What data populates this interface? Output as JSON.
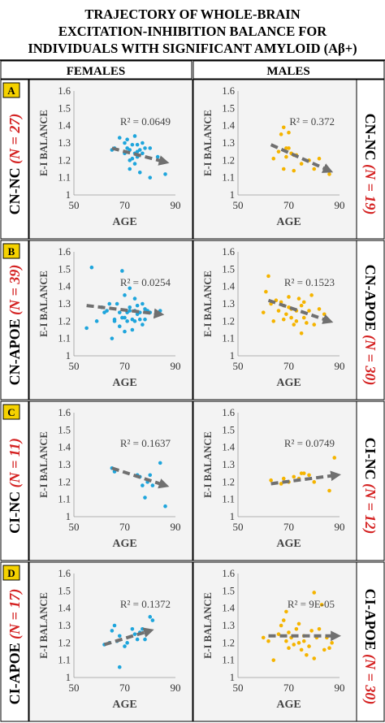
{
  "title_lines": [
    "TRAJECTORY OF WHOLE-BRAIN",
    "EXCITATION-INHIBITION BALANCE FOR",
    "INDIVIDUALS WITH SIGNIFICANT AMYLOID (Aβ+)"
  ],
  "columns": [
    "FEMALES",
    "MALES"
  ],
  "axis": {
    "xlabel": "AGE",
    "ylabel": "E-I BALANCE"
  },
  "colors": {
    "females": "#1ea5dc",
    "males": "#f5b400",
    "trend": "#707070",
    "panel_bg": "#f3f3f3",
    "count_red": "#d42020"
  },
  "rows": [
    {
      "letter": "A",
      "group": "CN-NC",
      "n_text": "(N = 27)",
      "n_text_males": "(N = 19)"
    },
    {
      "letter": "B",
      "group": "CN-APOE",
      "n_text": "(N = 39)",
      "n_text_males": "(N = 30)"
    },
    {
      "letter": "C",
      "group": "CI-NC",
      "n_text": "(N = 11)",
      "n_text_males": "(N = 12)"
    },
    {
      "letter": "D",
      "group": "CI-APOE",
      "n_text": "(N = 17)",
      "n_text_males": "(N = 30)"
    }
  ],
  "chart_data": [
    {
      "type": "scatter",
      "row": "A",
      "sex": "females",
      "title": "",
      "xlabel": "AGE",
      "ylabel": "E-I BALANCE",
      "xlim": [
        50,
        90
      ],
      "ylim": [
        1,
        1.6
      ],
      "xticks": [
        50,
        70,
        90
      ],
      "yticks": [
        1,
        1.1,
        1.2,
        1.3,
        1.4,
        1.5,
        1.6
      ],
      "x": [
        65,
        66,
        68,
        70,
        70,
        71,
        71,
        72,
        72,
        72,
        73,
        73,
        74,
        74,
        74,
        75,
        75,
        75,
        76,
        76,
        77,
        77,
        78,
        80,
        80,
        83,
        86
      ],
      "y": [
        1.26,
        1.27,
        1.33,
        1.3,
        1.24,
        1.32,
        1.27,
        1.2,
        1.15,
        1.26,
        1.29,
        1.21,
        1.24,
        1.34,
        1.18,
        1.25,
        1.29,
        1.22,
        1.26,
        1.13,
        1.3,
        1.24,
        1.27,
        1.1,
        1.27,
        1.22,
        1.12
      ],
      "trendline": {
        "x": [
          65,
          86
        ],
        "y": [
          1.27,
          1.19
        ]
      },
      "annotation": "R² = 0.0649"
    },
    {
      "type": "scatter",
      "row": "A",
      "sex": "males",
      "title": "",
      "xlabel": "AGE",
      "ylabel": "E-I BALANCE",
      "xlim": [
        50,
        90
      ],
      "ylim": [
        1,
        1.6
      ],
      "xticks": [
        50,
        70,
        90
      ],
      "yticks": [
        1,
        1.1,
        1.2,
        1.3,
        1.4,
        1.5,
        1.6
      ],
      "x": [
        64,
        66,
        67,
        68,
        68,
        69,
        69,
        70,
        70,
        71,
        72,
        72,
        73,
        75,
        78,
        80,
        82,
        85,
        86
      ],
      "y": [
        1.21,
        1.25,
        1.35,
        1.39,
        1.15,
        1.27,
        1.22,
        1.27,
        1.36,
        1.24,
        1.23,
        1.14,
        1.23,
        1.18,
        1.2,
        1.15,
        1.21,
        1.15,
        1.12
      ],
      "trendline": {
        "x": [
          63,
          86
        ],
        "y": [
          1.29,
          1.14
        ]
      },
      "annotation": "R² = 0.372"
    },
    {
      "type": "scatter",
      "row": "B",
      "sex": "females",
      "title": "",
      "xlabel": "AGE",
      "ylabel": "E-I BALANCE",
      "xlim": [
        50,
        90
      ],
      "ylim": [
        1,
        1.6
      ],
      "xticks": [
        50,
        70,
        90
      ],
      "yticks": [
        1,
        1.1,
        1.2,
        1.3,
        1.4,
        1.5,
        1.6
      ],
      "x": [
        55,
        57,
        59,
        61,
        62,
        63,
        64,
        65,
        66,
        66,
        67,
        68,
        68,
        69,
        69,
        70,
        70,
        70,
        71,
        71,
        72,
        72,
        72,
        73,
        73,
        74,
        74,
        74,
        75,
        75,
        76,
        76,
        77,
        77,
        78,
        78,
        79,
        80,
        84
      ],
      "y": [
        1.16,
        1.51,
        1.2,
        1.28,
        1.25,
        1.26,
        1.3,
        1.1,
        1.2,
        1.21,
        1.3,
        1.17,
        1.25,
        1.22,
        1.49,
        1.22,
        1.14,
        1.35,
        1.2,
        1.25,
        1.26,
        1.28,
        1.39,
        1.21,
        1.15,
        1.26,
        1.33,
        1.2,
        1.24,
        1.29,
        1.21,
        1.25,
        1.3,
        1.18,
        1.27,
        1.21,
        1.26,
        1.25,
        1.26
      ],
      "trendline": {
        "x": [
          55,
          84
        ],
        "y": [
          1.29,
          1.24
        ]
      },
      "annotation": "R² = 0.0254"
    },
    {
      "type": "scatter",
      "row": "B",
      "sex": "males",
      "title": "",
      "xlabel": "AGE",
      "ylabel": "E-I BALANCE",
      "xlim": [
        50,
        90
      ],
      "ylim": [
        1,
        1.6
      ],
      "xticks": [
        50,
        70,
        90
      ],
      "yticks": [
        1,
        1.1,
        1.2,
        1.3,
        1.4,
        1.5,
        1.6
      ],
      "x": [
        60,
        61,
        62,
        63,
        64,
        65,
        66,
        67,
        68,
        68,
        69,
        70,
        70,
        71,
        71,
        72,
        73,
        73,
        74,
        75,
        75,
        76,
        76,
        77,
        78,
        79,
        80,
        82,
        84,
        86
      ],
      "y": [
        1.25,
        1.37,
        1.46,
        1.3,
        1.2,
        1.32,
        1.26,
        1.31,
        1.29,
        1.21,
        1.24,
        1.28,
        1.34,
        1.22,
        1.27,
        1.18,
        1.26,
        1.2,
        1.33,
        1.29,
        1.13,
        1.22,
        1.31,
        1.19,
        1.26,
        1.35,
        1.18,
        1.27,
        1.24,
        1.2
      ],
      "trendline": {
        "x": [
          62,
          86
        ],
        "y": [
          1.32,
          1.2
        ]
      },
      "annotation": "R² = 0.1523"
    },
    {
      "type": "scatter",
      "row": "C",
      "sex": "females",
      "title": "",
      "xlabel": "AGE",
      "ylabel": "E-I BALANCE",
      "xlim": [
        50,
        90
      ],
      "ylim": [
        1,
        1.6
      ],
      "xticks": [
        50,
        70,
        90
      ],
      "yticks": [
        1,
        1.1,
        1.2,
        1.3,
        1.4,
        1.5,
        1.6
      ],
      "x": [
        65,
        66,
        75,
        76,
        77,
        78,
        79,
        80,
        81,
        84,
        86
      ],
      "y": [
        1.28,
        1.26,
        1.24,
        1.23,
        1.18,
        1.11,
        1.2,
        1.24,
        1.18,
        1.31,
        1.06
      ],
      "trendline": {
        "x": [
          65,
          86
        ],
        "y": [
          1.28,
          1.18
        ]
      },
      "annotation": "R² = 0.1637"
    },
    {
      "type": "scatter",
      "row": "C",
      "sex": "males",
      "title": "",
      "xlabel": "AGE",
      "ylabel": "E-I BALANCE",
      "xlim": [
        50,
        90
      ],
      "ylim": [
        1,
        1.6
      ],
      "xticks": [
        50,
        70,
        90
      ],
      "yticks": [
        1,
        1.1,
        1.2,
        1.3,
        1.4,
        1.5,
        1.6
      ],
      "x": [
        63,
        67,
        68,
        70,
        72,
        74,
        75,
        76,
        78,
        80,
        86,
        88
      ],
      "y": [
        1.21,
        1.19,
        1.22,
        1.2,
        1.23,
        1.22,
        1.25,
        1.25,
        1.24,
        1.2,
        1.15,
        1.34
      ],
      "trendline": {
        "x": [
          63,
          89
        ],
        "y": [
          1.19,
          1.24
        ]
      },
      "annotation": "R² = 0.0749"
    },
    {
      "type": "scatter",
      "row": "D",
      "sex": "females",
      "title": "",
      "xlabel": "AGE",
      "ylabel": "E-I BALANCE",
      "xlim": [
        50,
        90
      ],
      "ylim": [
        1,
        1.6
      ],
      "xticks": [
        50,
        70,
        90
      ],
      "yticks": [
        1,
        1.1,
        1.2,
        1.3,
        1.4,
        1.5,
        1.6
      ],
      "x": [
        62,
        64,
        65,
        66,
        67,
        68,
        68,
        70,
        71,
        73,
        74,
        75,
        76,
        77,
        78,
        80,
        81
      ],
      "y": [
        1.19,
        1.2,
        1.27,
        1.3,
        1.21,
        1.24,
        1.06,
        1.18,
        1.2,
        1.28,
        1.25,
        1.22,
        1.26,
        1.28,
        1.22,
        1.35,
        1.33
      ],
      "trendline": {
        "x": [
          62,
          80
        ],
        "y": [
          1.19,
          1.27
        ]
      },
      "annotation": "R² = 0.1372"
    },
    {
      "type": "scatter",
      "row": "D",
      "sex": "males",
      "title": "",
      "xlabel": "AGE",
      "ylabel": "E-I BALANCE",
      "xlim": [
        50,
        90
      ],
      "ylim": [
        1,
        1.6
      ],
      "xticks": [
        50,
        70,
        90
      ],
      "yticks": [
        1,
        1.1,
        1.2,
        1.3,
        1.4,
        1.5,
        1.6
      ],
      "x": [
        60,
        62,
        64,
        66,
        67,
        68,
        69,
        69,
        70,
        70,
        71,
        72,
        73,
        74,
        74,
        75,
        76,
        76,
        77,
        78,
        79,
        80,
        80,
        81,
        82,
        83,
        84,
        85,
        86,
        87
      ],
      "y": [
        1.23,
        1.21,
        1.1,
        1.25,
        1.3,
        1.33,
        1.38,
        1.21,
        1.17,
        1.26,
        1.23,
        1.19,
        1.28,
        1.2,
        1.31,
        1.16,
        1.24,
        1.21,
        1.13,
        1.18,
        1.27,
        1.49,
        1.11,
        1.23,
        1.28,
        1.42,
        1.16,
        1.23,
        1.17,
        1.2
      ],
      "trendline": {
        "x": [
          62,
          89
        ],
        "y": [
          1.24,
          1.24
        ]
      },
      "annotation": "R² = 9E-05"
    }
  ]
}
